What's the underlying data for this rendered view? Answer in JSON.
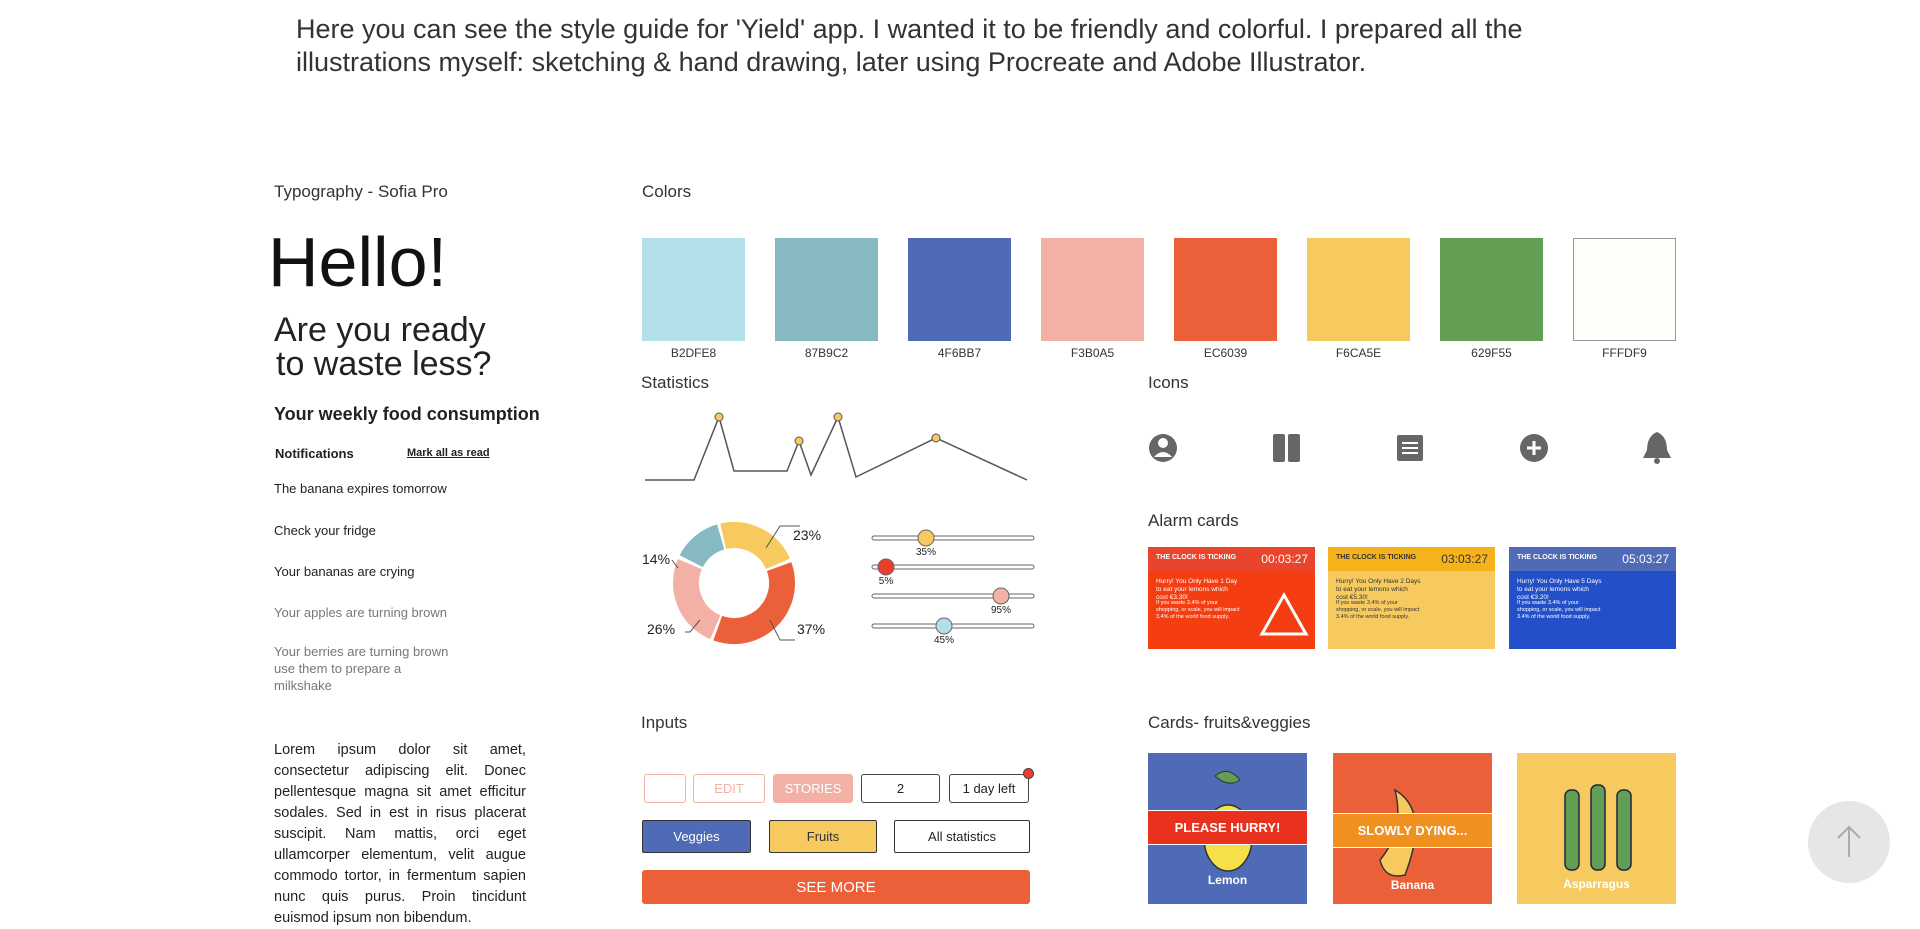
{
  "intro": {
    "lines": [
      "Here you can see the style guide for 'Yield' app. I wanted it to be friendly and colorful. I prepared all the",
      "illustrations myself: sketching & hand drawing, later using Procreate and Adobe Illustrator."
    ]
  },
  "typography": {
    "title": "Typography - Sofia Pro",
    "display": "Hello!",
    "headline": [
      "Are you ready",
      "to waste less?"
    ],
    "subtitle": "Your weekly food consumption",
    "notifications": {
      "title": "Notifications",
      "action": "Mark all as read",
      "items": [
        "The banana expires tomorrow",
        "Check your fridge",
        "Your bananas are crying",
        "Your apples are turning brown"
      ],
      "last_item": [
        "Your berries are turning brown",
        "use them to prepare a",
        "milkshake"
      ]
    },
    "body": "Lorem ipsum dolor sit amet, consectetur adipiscing elit. Donec pellentesque magna sit amet efficitur sodales. Sed in est in risus placerat suscipit. Nam mattis, orci eget ullamcorper elementum, velit augue commodo tortor, in fermentum sapien nunc quis purus. Proin tincidunt euismod ipsum non bibendum."
  },
  "colors": {
    "title": "Colors",
    "swatches": [
      {
        "label": "B2DFE8",
        "color": "#B2DFE8"
      },
      {
        "label": "87B9C2",
        "color": "#87B9C2"
      },
      {
        "label": "4F6BB7",
        "color": "#4F6BB7"
      },
      {
        "label": "F3B0A5",
        "color": "#F3B0A5"
      },
      {
        "label": "EC6039",
        "color": "#EC6039"
      },
      {
        "label": "F6CA5E",
        "color": "#F6CA5E"
      },
      {
        "label": "629F55",
        "color": "#629F55"
      },
      {
        "label": "FFFDF9",
        "color": "#FFFDF9"
      }
    ]
  },
  "statistics": {
    "title": "Statistics",
    "donut_labels": [
      "14%",
      "23%",
      "26%",
      "37%"
    ],
    "slider_labels": [
      "35%",
      "5%",
      "95%",
      "45%"
    ]
  },
  "icons": {
    "title": "Icons"
  },
  "alarm_cards": {
    "title": "Alarm cards",
    "cards": [
      {
        "header": "THE CLOCK IS TICKING",
        "time": "00:03:27",
        "text": "Hurry! You Only Have 1 Day to eat your lemons which cost €3.30!",
        "note": "If you waste 3.4% of your shopping, or scale, you will impact 3.4% of the world food supply."
      },
      {
        "header": "THE CLOCK IS TICKING",
        "time": "03:03:27",
        "text": "Hurry! You Only Have 2 Days to eat your lemons which cost €5.30!",
        "note": "If you waste 3.4% of your shopping, or scale, you will impact 3.4% of the world food supply."
      },
      {
        "header": "THE CLOCK IS TICKING",
        "time": "05:03:27",
        "text": "Hurry! You Only Have 5 Days to eat your lemons which cost €3.20!",
        "note": "If you waste 3.4% of your shopping, or scale, you will impact 3.4% of the world food supply."
      }
    ]
  },
  "inputs": {
    "title": "Inputs",
    "edit": "EDIT",
    "stories": "STORIES",
    "count": "2",
    "deadline": "1 day left",
    "tabs": [
      "Veggies",
      "Fruits",
      "All statistics"
    ],
    "cta": "SEE MORE"
  },
  "fruit_cards": {
    "title": "Cards- fruits&veggies",
    "cards": [
      {
        "name": "Lemon",
        "banner": "PLEASE HURRY!"
      },
      {
        "name": "Banana",
        "banner": "SLOWLY DYING..."
      },
      {
        "name": "Asparragus"
      }
    ]
  }
}
